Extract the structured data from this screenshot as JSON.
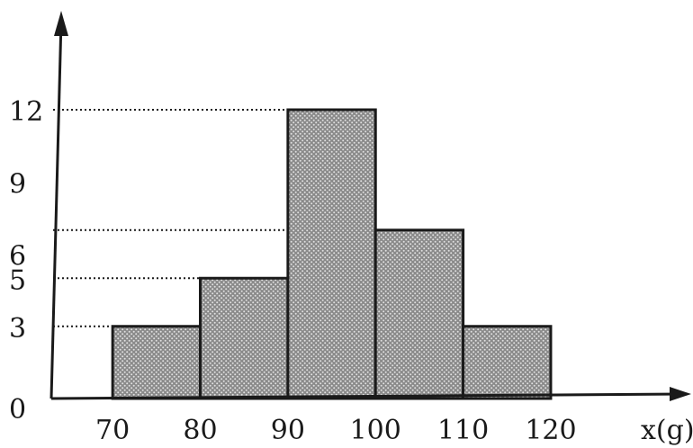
{
  "chart_data": {
    "type": "bar",
    "bins": [
      {
        "from": 70,
        "to": 80,
        "value": 3
      },
      {
        "from": 80,
        "to": 90,
        "value": 5
      },
      {
        "from": 90,
        "to": 100,
        "value": 12
      },
      {
        "from": 100,
        "to": 110,
        "value": 7
      },
      {
        "from": 110,
        "to": 120,
        "value": 3
      }
    ],
    "x_ticks": [
      "70",
      "80",
      "90",
      "100",
      "110",
      "120"
    ],
    "y_ticks": [
      "12",
      "9",
      "6",
      "5",
      "3",
      "0"
    ],
    "guide_levels": [
      12,
      7,
      5,
      3
    ],
    "xlabel": "x(g)",
    "ylabel": "",
    "title": "",
    "xlim": [
      63,
      135
    ],
    "ylim": [
      0,
      12
    ]
  }
}
